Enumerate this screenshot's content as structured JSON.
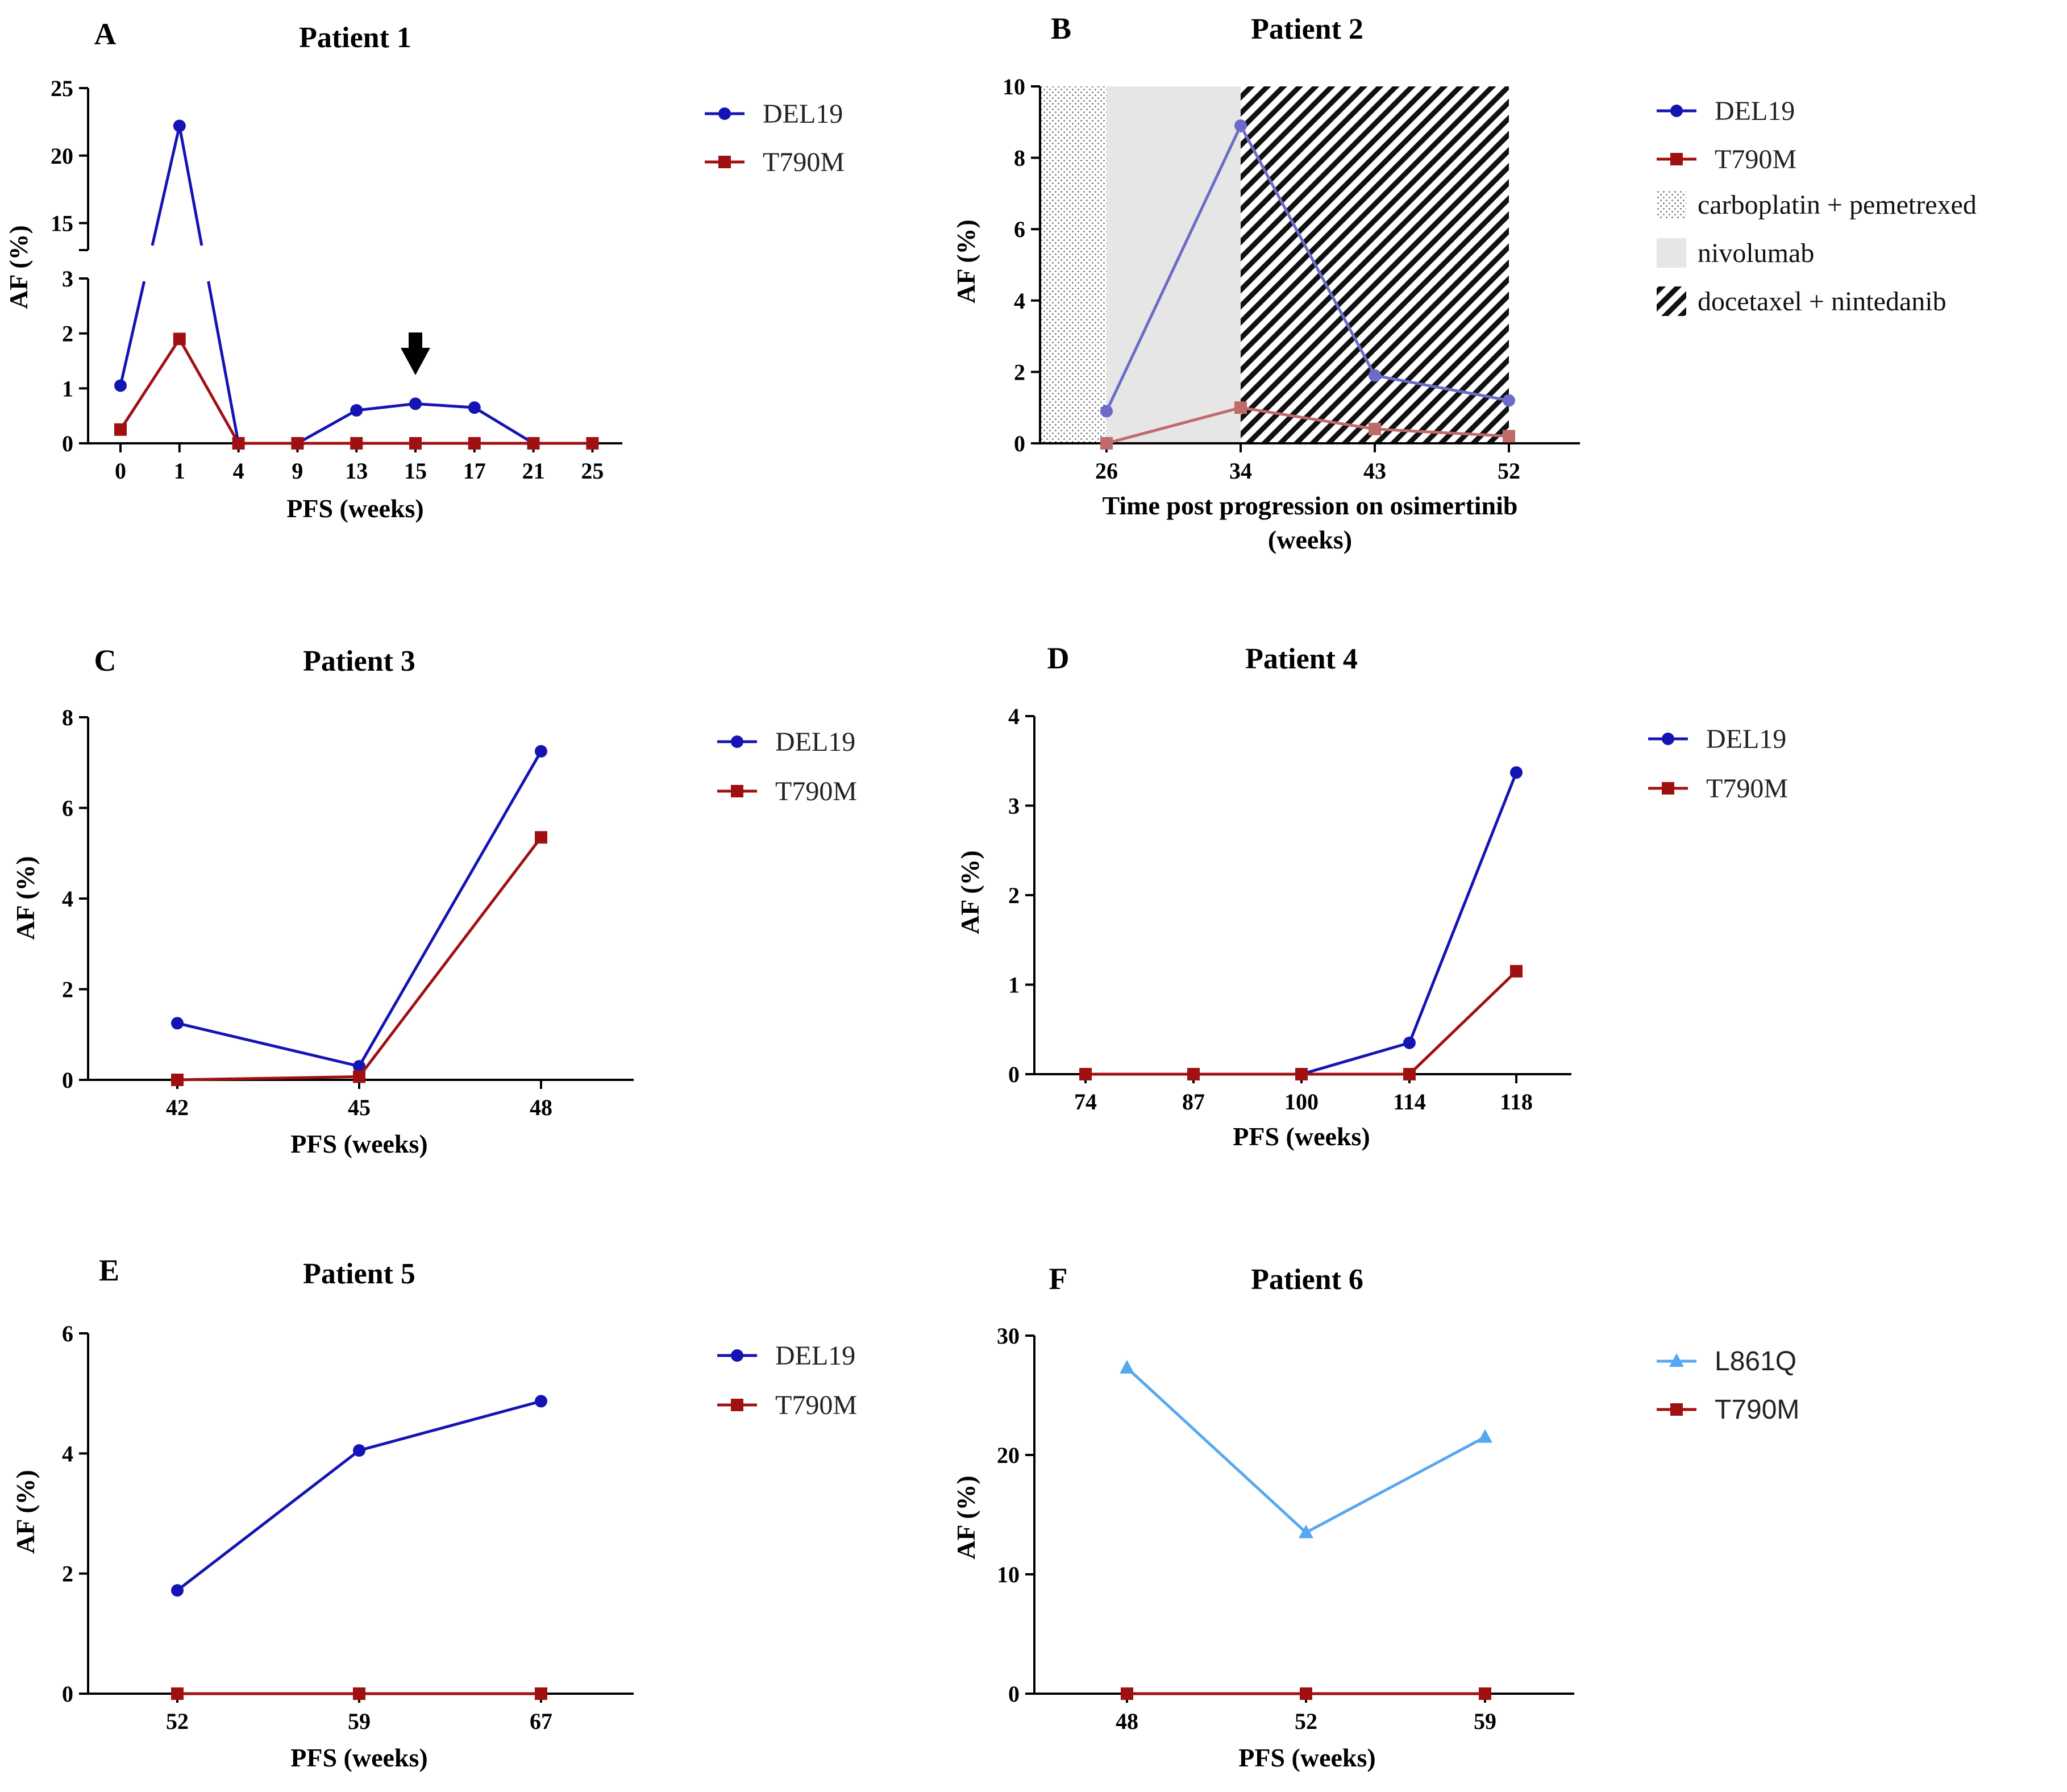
{
  "colors": {
    "del19": "#1414b4",
    "del19_faded": "#6b6bc8",
    "t790m": "#a01010",
    "t790m_faded": "#c06a6a",
    "l861q": "#55a8f0",
    "axis": "#000000",
    "nivolumab_bg": "#e6e6e6"
  },
  "chart_data": [
    {
      "panel": "A",
      "type": "line",
      "title": "Patient 1",
      "xlabel": "PFS (weeks)",
      "ylabel": "AF (%)",
      "categories": [
        "0",
        "1",
        "4",
        "9",
        "13",
        "15",
        "17",
        "21",
        "25"
      ],
      "y_axis_break": {
        "lower_range": [
          0,
          3
        ],
        "upper_range": [
          13,
          25
        ]
      },
      "lower_ticks": [
        "0",
        "1",
        "2",
        "3"
      ],
      "upper_ticks": [
        "15",
        "20",
        "25"
      ],
      "annotation": "arrow at week 15",
      "legend_position": "right",
      "series": [
        {
          "name": "DEL19",
          "marker": "circle",
          "color_key": "del19",
          "values": [
            1.05,
            22.2,
            0,
            0,
            0.6,
            0.72,
            0.65,
            0,
            0
          ]
        },
        {
          "name": "T790M",
          "marker": "square",
          "color_key": "t790m",
          "values": [
            0.25,
            1.9,
            0,
            0,
            0,
            0,
            0,
            0,
            0
          ]
        }
      ]
    },
    {
      "panel": "B",
      "type": "line",
      "title": "Patient 2",
      "xlabel_lines": [
        "Time post progression on osimertinib",
        "(weeks)"
      ],
      "ylabel": "AF (%)",
      "categories": [
        "26",
        "34",
        "43",
        "52"
      ],
      "ylim": [
        0,
        10
      ],
      "yticks": [
        "0",
        "2",
        "4",
        "6",
        "8",
        "10"
      ],
      "treatments": [
        {
          "name": "carboplatin + pemetrexed",
          "pattern": "dots",
          "from": "before 26",
          "to": "26"
        },
        {
          "name": "nivolumab",
          "pattern": "grey",
          "from": "26",
          "to": "34"
        },
        {
          "name": "docetaxel + nintedanib",
          "pattern": "hatch",
          "from": "34",
          "to": "52"
        }
      ],
      "legend_position": "right",
      "series": [
        {
          "name": "DEL19",
          "marker": "circle",
          "color_key": "del19",
          "values": [
            0.9,
            8.9,
            1.9,
            1.2
          ]
        },
        {
          "name": "T790M",
          "marker": "square",
          "color_key": "t790m",
          "values": [
            0,
            1.0,
            0.4,
            0.2
          ]
        }
      ]
    },
    {
      "panel": "C",
      "type": "line",
      "title": "Patient 3",
      "xlabel": "PFS (weeks)",
      "ylabel": "AF (%)",
      "categories": [
        "42",
        "45",
        "48"
      ],
      "ylim": [
        0,
        8
      ],
      "yticks": [
        "0",
        "2",
        "4",
        "6",
        "8"
      ],
      "legend_position": "right",
      "series": [
        {
          "name": "DEL19",
          "marker": "circle",
          "color_key": "del19",
          "values": [
            1.25,
            0.3,
            7.25
          ]
        },
        {
          "name": "T790M",
          "marker": "square",
          "color_key": "t790m",
          "values": [
            0,
            0.07,
            5.35
          ]
        }
      ]
    },
    {
      "panel": "D",
      "type": "line",
      "title": "Patient 4",
      "xlabel": "PFS (weeks)",
      "ylabel": "AF (%)",
      "categories": [
        "74",
        "87",
        "100",
        "114",
        "118"
      ],
      "ylim": [
        0,
        4
      ],
      "yticks": [
        "0",
        "1",
        "2",
        "3",
        "4"
      ],
      "legend_position": "right",
      "series": [
        {
          "name": "DEL19",
          "marker": "circle",
          "color_key": "del19",
          "values": [
            0,
            0,
            0,
            0.35,
            3.37
          ]
        },
        {
          "name": "T790M",
          "marker": "square",
          "color_key": "t790m",
          "values": [
            0,
            0,
            0,
            0,
            1.15
          ]
        }
      ]
    },
    {
      "panel": "E",
      "type": "line",
      "title": "Patient 5",
      "xlabel": "PFS (weeks)",
      "ylabel": "AF (%)",
      "categories": [
        "52",
        "59",
        "67"
      ],
      "ylim": [
        0,
        6
      ],
      "yticks": [
        "0",
        "2",
        "4",
        "6"
      ],
      "legend_position": "right",
      "series": [
        {
          "name": "DEL19",
          "marker": "circle",
          "color_key": "del19",
          "values": [
            1.72,
            4.05,
            4.87
          ]
        },
        {
          "name": "T790M",
          "marker": "square",
          "color_key": "t790m",
          "values": [
            0,
            0,
            0
          ]
        }
      ]
    },
    {
      "panel": "F",
      "type": "line",
      "title": "Patient 6",
      "xlabel": "PFS (weeks)",
      "ylabel": "AF (%)",
      "categories": [
        "48",
        "52",
        "59"
      ],
      "ylim": [
        0,
        30
      ],
      "yticks": [
        "0",
        "10",
        "20",
        "30"
      ],
      "legend_position": "right",
      "series": [
        {
          "name": "L861Q",
          "marker": "triangle",
          "color_key": "l861q",
          "values": [
            27.3,
            13.5,
            21.5
          ]
        },
        {
          "name": "T790M",
          "marker": "square",
          "color_key": "t790m",
          "values": [
            0,
            0,
            0
          ]
        }
      ]
    }
  ]
}
